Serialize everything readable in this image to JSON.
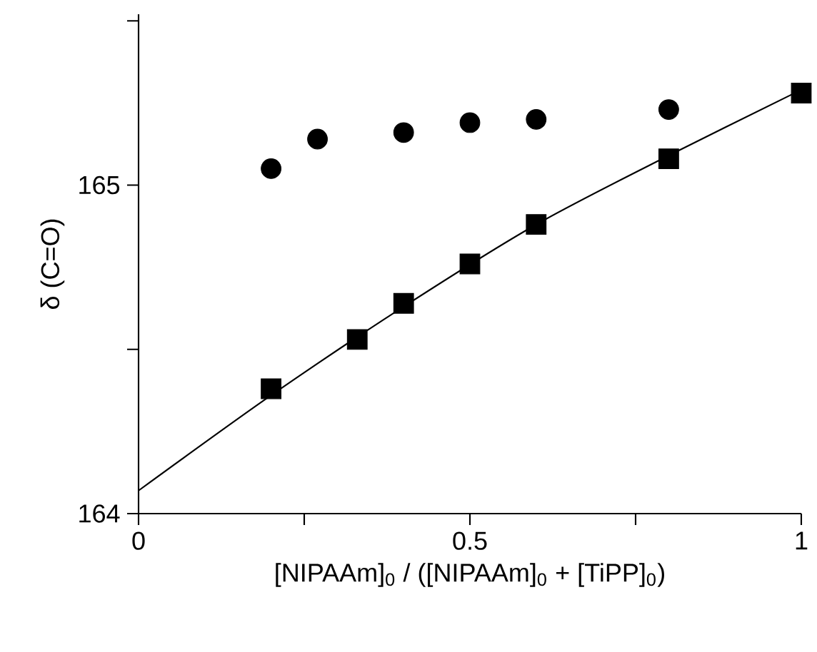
{
  "chart_data": {
    "type": "scatter",
    "xlabel": "[NIPAAm]$_{0}$ / ([NIPAAm]$_{0}$ + [TiPP]$_{0}$)",
    "ylabel": "δ (C=O)",
    "xlim": [
      0,
      1
    ],
    "ylim": [
      164,
      165.52
    ],
    "xticks": [
      0,
      {
        "value": 0.25,
        "label": null
      },
      0.5,
      {
        "value": 0.75,
        "label": null
      },
      1
    ],
    "yticks": [
      164,
      {
        "value": 164.5,
        "label": null
      },
      165,
      {
        "value": 165.5,
        "label": null
      }
    ],
    "grid": false,
    "series": [
      {
        "marker": "circle",
        "color": "#000000",
        "x": [
          0.2,
          0.27,
          0.4,
          0.5,
          0.6,
          0.8
        ],
        "values": [
          165.05,
          165.14,
          165.16,
          165.19,
          165.2,
          165.23
        ]
      },
      {
        "marker": "square",
        "color": "#000000",
        "x": [
          0.2,
          0.33,
          0.4,
          0.5,
          0.6,
          0.8,
          1.0
        ],
        "values": [
          164.38,
          164.53,
          164.64,
          164.76,
          164.88,
          165.08,
          165.28
        ]
      },
      {
        "type": "line",
        "marker": "none",
        "color": "#000000",
        "x": [
          0,
          0.2,
          0.4,
          0.6,
          0.8,
          1.0
        ],
        "values": [
          164.07,
          164.36,
          164.63,
          164.88,
          165.09,
          165.29
        ]
      }
    ]
  }
}
